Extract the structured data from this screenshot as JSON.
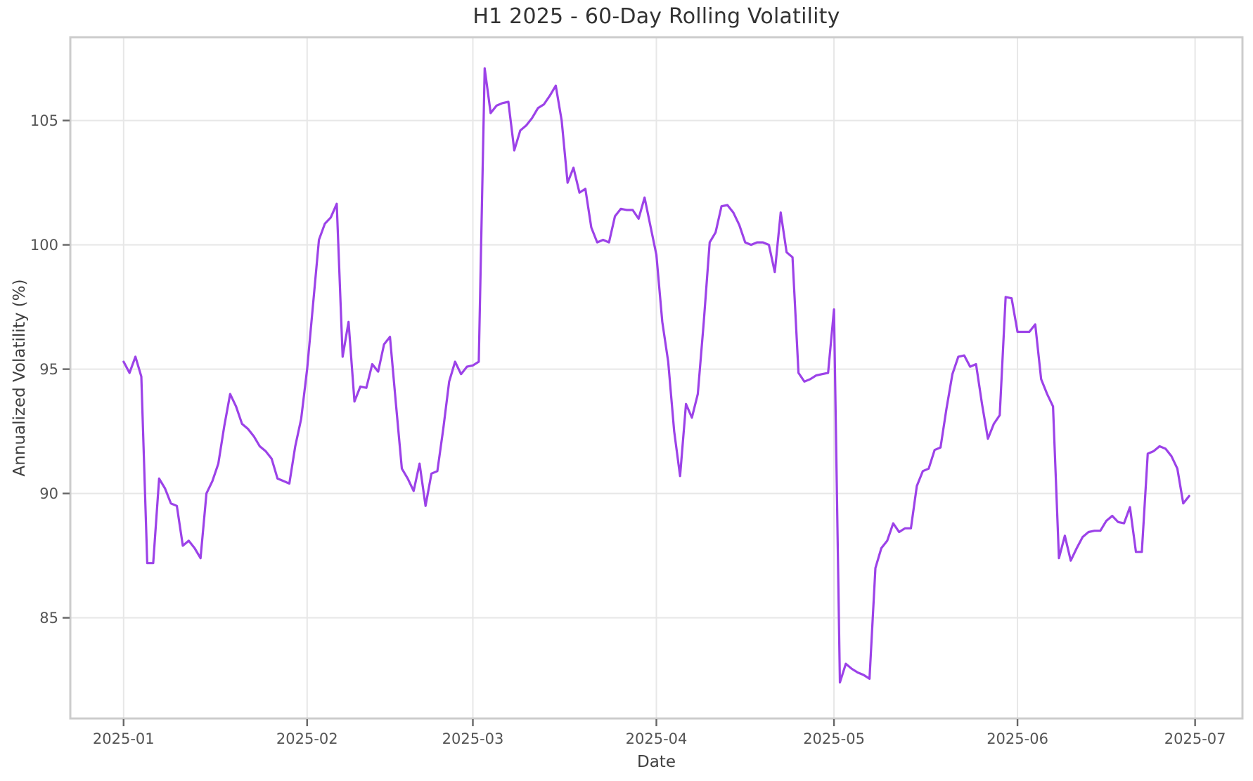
{
  "figure": {
    "title": "H1 2025 - 60-Day Rolling Volatility",
    "xlabel": "Date",
    "ylabel": "Annualized Volatility (%)"
  },
  "chart_data": {
    "type": "line",
    "title": "H1 2025 - 60-Day Rolling Volatility",
    "xlabel": "Date",
    "ylabel": "Annualized Volatility (%)",
    "grid": true,
    "legend_position": "none",
    "line_color": "#9c42e8",
    "grid_color": "#e7e7e7",
    "spine_color": "#cccccc",
    "tick_color": "#666666",
    "tick_label_color": "#555555",
    "start_date": "2025-01-01",
    "end_date": "2025-06-30",
    "frequency": "daily",
    "x_tick_labels": [
      "2025-01",
      "2025-02",
      "2025-03",
      "2025-04",
      "2025-05",
      "2025-06",
      "2025-07"
    ],
    "y_ticks": [
      85,
      90,
      95,
      100,
      105
    ],
    "ylim": [
      80.95,
      108.35
    ],
    "xlim_days": [
      -9,
      189
    ],
    "series": [
      {
        "name": "60-Day Rolling Volatility (%)",
        "values": [
          95.3,
          94.85,
          95.5,
          94.7,
          87.2,
          87.2,
          90.6,
          90.2,
          89.6,
          89.5,
          87.9,
          88.1,
          87.8,
          87.4,
          90.0,
          90.5,
          91.2,
          92.7,
          94.0,
          93.5,
          92.8,
          92.6,
          92.3,
          91.9,
          91.7,
          91.4,
          90.6,
          90.5,
          90.4,
          91.9,
          93.0,
          95.0,
          97.6,
          100.2,
          100.85,
          101.1,
          101.65,
          95.5,
          96.9,
          93.7,
          94.3,
          94.25,
          95.2,
          94.9,
          96.0,
          96.3,
          93.6,
          91.0,
          90.6,
          90.1,
          91.2,
          89.5,
          90.8,
          90.9,
          92.6,
          94.5,
          95.3,
          94.8,
          95.1,
          95.15,
          95.3,
          107.1,
          105.3,
          105.6,
          105.7,
          105.75,
          103.8,
          104.6,
          104.8,
          105.1,
          105.5,
          105.65,
          106.0,
          106.4,
          105.0,
          102.5,
          103.1,
          102.1,
          102.25,
          100.7,
          100.1,
          100.2,
          100.1,
          101.15,
          101.45,
          101.4,
          101.4,
          101.05,
          101.9,
          100.75,
          99.6,
          96.9,
          95.3,
          92.5,
          90.7,
          93.6,
          93.05,
          94.0,
          96.9,
          100.1,
          100.5,
          101.55,
          101.6,
          101.3,
          100.8,
          100.1,
          100.0,
          100.1,
          100.1,
          100.0,
          98.9,
          101.3,
          99.7,
          99.5,
          94.85,
          94.5,
          94.6,
          94.75,
          94.8,
          94.85,
          97.4,
          82.4,
          83.15,
          82.95,
          82.8,
          82.7,
          82.55,
          87.0,
          87.8,
          88.1,
          88.8,
          88.45,
          88.6,
          88.6,
          90.3,
          90.9,
          91.0,
          91.75,
          91.85,
          93.4,
          94.8,
          95.5,
          95.55,
          95.1,
          95.2,
          93.6,
          92.2,
          92.8,
          93.15,
          97.9,
          97.85,
          96.5,
          96.5,
          96.5,
          96.8,
          94.6,
          94.0,
          93.5,
          87.4,
          88.3,
          87.3,
          87.8,
          88.25,
          88.45,
          88.5,
          88.5,
          88.9,
          89.1,
          88.85,
          88.8,
          89.45,
          87.65,
          87.65,
          91.6,
          91.7,
          91.9,
          91.8,
          91.5,
          91.0,
          89.6,
          89.9
        ]
      }
    ]
  }
}
